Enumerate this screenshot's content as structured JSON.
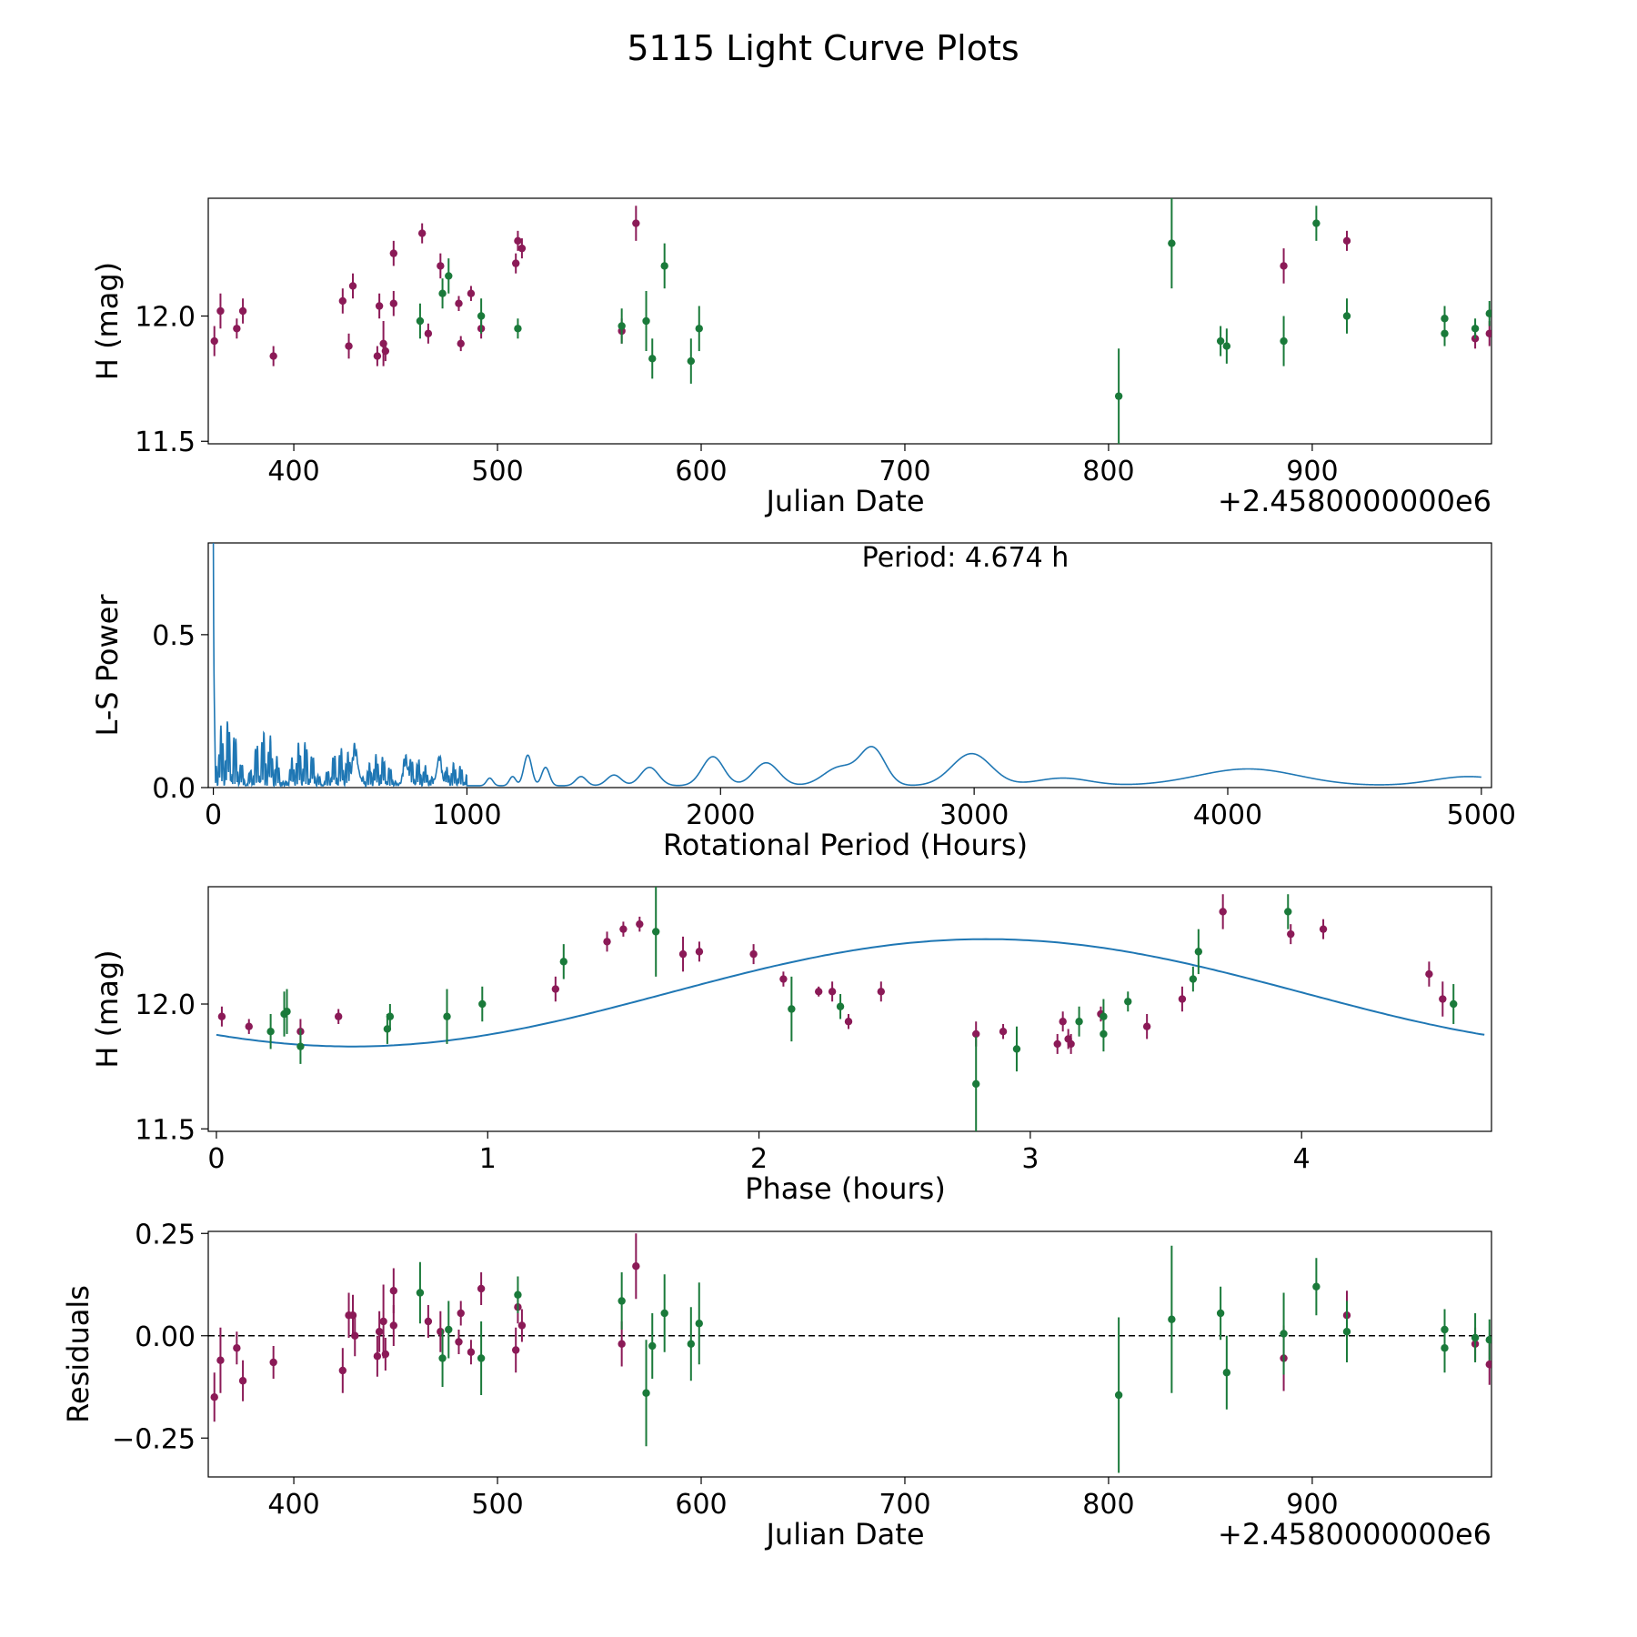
{
  "figure": {
    "title": "5115 Light Curve Plots"
  },
  "colors": {
    "purple": "#8b1a57",
    "green": "#1a7a3a",
    "curve": "#1f77b4"
  },
  "chart_data": [
    {
      "type": "scatter",
      "name": "lightcurve",
      "xlabel": "Julian Date",
      "ylabel": "H (mag)",
      "x_offset_label": "+2.4580000000e6",
      "xlim": [
        358,
        988
      ],
      "ylim": [
        11.49,
        12.47
      ],
      "xticks": [
        400,
        500,
        600,
        700,
        800,
        900
      ],
      "xtick_labels": [
        "400",
        "500",
        "600",
        "700",
        "800",
        "900"
      ],
      "yticks": [
        11.5,
        12.0
      ],
      "ytick_labels": [
        "11.5",
        "12.0"
      ],
      "series": [
        {
          "name": "purple",
          "color": "purple",
          "points": [
            [
              361,
              11.9,
              0.06
            ],
            [
              364,
              12.02,
              0.07
            ],
            [
              372,
              11.95,
              0.04
            ],
            [
              375,
              12.02,
              0.05
            ],
            [
              390,
              11.84,
              0.04
            ],
            [
              424,
              12.06,
              0.05
            ],
            [
              427,
              11.88,
              0.05
            ],
            [
              429,
              12.12,
              0.05
            ],
            [
              441,
              11.84,
              0.04
            ],
            [
              442,
              12.04,
              0.05
            ],
            [
              444,
              11.89,
              0.09
            ],
            [
              445,
              11.86,
              0.04
            ],
            [
              449,
              12.25,
              0.05
            ],
            [
              449,
              12.05,
              0.05
            ],
            [
              463,
              12.33,
              0.04
            ],
            [
              466,
              11.93,
              0.04
            ],
            [
              472,
              12.2,
              0.05
            ],
            [
              481,
              12.05,
              0.03
            ],
            [
              482,
              11.89,
              0.03
            ],
            [
              487,
              12.09,
              0.03
            ],
            [
              492,
              11.95,
              0.04
            ],
            [
              509,
              12.21,
              0.04
            ],
            [
              510,
              12.3,
              0.04
            ],
            [
              512,
              12.27,
              0.04
            ],
            [
              561,
              11.94,
              0.05
            ],
            [
              568,
              12.37,
              0.07
            ],
            [
              917,
              12.3,
              0.04
            ],
            [
              886,
              12.2,
              0.07
            ],
            [
              980,
              11.91,
              0.04
            ],
            [
              987,
              11.93,
              0.05
            ]
          ]
        },
        {
          "name": "green",
          "color": "green",
          "points": [
            [
              462,
              11.98,
              0.07
            ],
            [
              473,
              12.09,
              0.06
            ],
            [
              476,
              12.16,
              0.07
            ],
            [
              492,
              12.0,
              0.07
            ],
            [
              510,
              11.95,
              0.04
            ],
            [
              561,
              11.96,
              0.07
            ],
            [
              573,
              11.98,
              0.12
            ],
            [
              576,
              11.83,
              0.08
            ],
            [
              582,
              12.2,
              0.09
            ],
            [
              595,
              11.82,
              0.09
            ],
            [
              599,
              11.95,
              0.09
            ],
            [
              805,
              11.68,
              0.19
            ],
            [
              831,
              12.29,
              0.18
            ],
            [
              855,
              11.9,
              0.06
            ],
            [
              858,
              11.88,
              0.07
            ],
            [
              886,
              11.9,
              0.1
            ],
            [
              902,
              12.37,
              0.07
            ],
            [
              917,
              12.0,
              0.07
            ],
            [
              965,
              11.99,
              0.05
            ],
            [
              965,
              11.93,
              0.05
            ],
            [
              980,
              11.95,
              0.04
            ],
            [
              987,
              12.01,
              0.05
            ]
          ]
        }
      ]
    },
    {
      "type": "line",
      "name": "periodogram",
      "xlabel": "Rotational Period (Hours)",
      "ylabel": "L-S Power",
      "xlim": [
        -20,
        5040
      ],
      "ylim": [
        0,
        0.8
      ],
      "xticks": [
        0,
        1000,
        2000,
        3000,
        4000,
        5000
      ],
      "xtick_labels": [
        "0",
        "1000",
        "2000",
        "3000",
        "4000",
        "5000"
      ],
      "yticks": [
        0.0,
        0.5
      ],
      "ytick_labels": [
        "0.0",
        "0.5"
      ],
      "annotation": "Period: 4.674 h",
      "peaks": [
        [
          1090,
          0.025,
          18
        ],
        [
          1180,
          0.03,
          18
        ],
        [
          1240,
          0.1,
          22
        ],
        [
          1310,
          0.06,
          22
        ],
        [
          1450,
          0.03,
          30
        ],
        [
          1580,
          0.035,
          40
        ],
        [
          1720,
          0.06,
          50
        ],
        [
          1970,
          0.095,
          60
        ],
        [
          2180,
          0.075,
          70
        ],
        [
          2470,
          0.06,
          90
        ],
        [
          2600,
          0.12,
          70
        ],
        [
          2990,
          0.105,
          110
        ],
        [
          3350,
          0.025,
          150
        ],
        [
          4080,
          0.055,
          280
        ],
        [
          4950,
          0.03,
          200
        ]
      ],
      "low_region_max_period": 1000
    },
    {
      "type": "scatter",
      "name": "phased",
      "xlabel": "Phase (hours)",
      "ylabel": "H (mag)",
      "xlim": [
        -0.03,
        4.7
      ],
      "ylim": [
        11.49,
        12.47
      ],
      "xticks": [
        0,
        1,
        2,
        3,
        4
      ],
      "xtick_labels": [
        "0",
        "1",
        "2",
        "3",
        "4"
      ],
      "yticks": [
        11.5,
        12.0
      ],
      "ytick_labels": [
        "11.5",
        "12.0"
      ],
      "fit": {
        "period": 4.674,
        "mean": 12.045,
        "amplitude": 0.215,
        "min_phase": 0.5
      },
      "series": [
        {
          "name": "purple",
          "color": "purple",
          "points": [
            [
              0.02,
              11.95,
              0.04
            ],
            [
              0.12,
              11.91,
              0.03
            ],
            [
              0.31,
              11.89,
              0.05
            ],
            [
              0.45,
              11.95,
              0.03
            ],
            [
              1.25,
              12.06,
              0.05
            ],
            [
              1.44,
              12.25,
              0.04
            ],
            [
              1.5,
              12.3,
              0.03
            ],
            [
              1.56,
              12.32,
              0.03
            ],
            [
              1.72,
              12.2,
              0.07
            ],
            [
              1.78,
              12.21,
              0.04
            ],
            [
              1.98,
              12.2,
              0.04
            ],
            [
              2.09,
              12.1,
              0.03
            ],
            [
              2.22,
              12.05,
              0.02
            ],
            [
              2.27,
              12.05,
              0.04
            ],
            [
              2.33,
              11.93,
              0.03
            ],
            [
              2.45,
              12.05,
              0.04
            ],
            [
              2.8,
              11.88,
              0.05
            ],
            [
              2.9,
              11.89,
              0.03
            ],
            [
              3.1,
              11.84,
              0.04
            ],
            [
              3.12,
              11.93,
              0.04
            ],
            [
              3.14,
              11.86,
              0.04
            ],
            [
              3.15,
              11.84,
              0.04
            ],
            [
              3.26,
              11.96,
              0.03
            ],
            [
              3.43,
              11.91,
              0.05
            ],
            [
              3.56,
              12.02,
              0.05
            ],
            [
              3.71,
              12.37,
              0.07
            ],
            [
              3.96,
              12.28,
              0.04
            ],
            [
              4.08,
              12.3,
              0.04
            ],
            [
              4.47,
              12.12,
              0.05
            ],
            [
              4.52,
              12.02,
              0.07
            ]
          ]
        },
        {
          "name": "green",
          "color": "green",
          "points": [
            [
              0.2,
              11.89,
              0.07
            ],
            [
              0.25,
              11.96,
              0.09
            ],
            [
              0.26,
              11.97,
              0.09
            ],
            [
              0.31,
              11.83,
              0.07
            ],
            [
              0.63,
              11.9,
              0.06
            ],
            [
              0.64,
              11.95,
              0.05
            ],
            [
              0.85,
              11.95,
              0.11
            ],
            [
              0.98,
              12.0,
              0.07
            ],
            [
              1.28,
              12.17,
              0.07
            ],
            [
              1.62,
              12.29,
              0.18
            ],
            [
              2.12,
              11.98,
              0.13
            ],
            [
              2.3,
              11.99,
              0.05
            ],
            [
              2.8,
              11.68,
              0.19
            ],
            [
              2.95,
              11.82,
              0.09
            ],
            [
              3.18,
              11.93,
              0.06
            ],
            [
              3.27,
              11.88,
              0.07
            ],
            [
              3.27,
              11.95,
              0.07
            ],
            [
              3.36,
              12.01,
              0.04
            ],
            [
              3.6,
              12.1,
              0.05
            ],
            [
              3.62,
              12.21,
              0.09
            ],
            [
              3.95,
              12.37,
              0.07
            ],
            [
              4.56,
              12.0,
              0.08
            ]
          ]
        }
      ]
    },
    {
      "type": "scatter",
      "name": "residuals",
      "xlabel": "Julian Date",
      "ylabel": "Residuals",
      "x_offset_label": "+2.4580000000e6",
      "xlim": [
        358,
        988
      ],
      "ylim": [
        -0.345,
        0.255
      ],
      "xticks": [
        400,
        500,
        600,
        700,
        800,
        900
      ],
      "xtick_labels": [
        "400",
        "500",
        "600",
        "700",
        "800",
        "900"
      ],
      "yticks": [
        0.25,
        0.0,
        -0.25
      ],
      "ytick_labels": [
        "0.25",
        "0.00",
        "−0.25"
      ],
      "zero_line": true,
      "series": [
        {
          "name": "purple",
          "color": "purple",
          "points": [
            [
              361,
              -0.15,
              0.06
            ],
            [
              364,
              -0.06,
              0.08
            ],
            [
              372,
              -0.03,
              0.04
            ],
            [
              375,
              -0.11,
              0.05
            ],
            [
              390,
              -0.065,
              0.04
            ],
            [
              424,
              -0.085,
              0.055
            ],
            [
              427,
              0.05,
              0.055
            ],
            [
              429,
              0.05,
              0.05
            ],
            [
              430,
              0.0,
              0.05
            ],
            [
              441,
              -0.05,
              0.05
            ],
            [
              442,
              0.01,
              0.05
            ],
            [
              444,
              0.035,
              0.09
            ],
            [
              445,
              -0.045,
              0.04
            ],
            [
              449,
              0.11,
              0.055
            ],
            [
              449,
              0.025,
              0.05
            ],
            [
              466,
              0.035,
              0.04
            ],
            [
              472,
              0.01,
              0.05
            ],
            [
              481,
              -0.015,
              0.03
            ],
            [
              482,
              0.055,
              0.03
            ],
            [
              487,
              -0.04,
              0.03
            ],
            [
              492,
              0.115,
              0.04
            ],
            [
              509,
              -0.035,
              0.055
            ],
            [
              510,
              0.07,
              0.04
            ],
            [
              512,
              0.025,
              0.04
            ],
            [
              561,
              -0.02,
              0.055
            ],
            [
              568,
              0.17,
              0.08
            ],
            [
              886,
              -0.055,
              0.08
            ],
            [
              917,
              0.05,
              0.06
            ],
            [
              980,
              -0.02,
              0.04
            ],
            [
              987,
              -0.07,
              0.05
            ]
          ]
        },
        {
          "name": "green",
          "color": "green",
          "points": [
            [
              462,
              0.105,
              0.075
            ],
            [
              473,
              -0.055,
              0.07
            ],
            [
              476,
              0.015,
              0.07
            ],
            [
              492,
              -0.055,
              0.09
            ],
            [
              510,
              0.1,
              0.045
            ],
            [
              561,
              0.085,
              0.07
            ],
            [
              573,
              -0.14,
              0.13
            ],
            [
              576,
              -0.025,
              0.08
            ],
            [
              582,
              0.055,
              0.095
            ],
            [
              595,
              -0.02,
              0.09
            ],
            [
              599,
              0.03,
              0.1
            ],
            [
              805,
              -0.145,
              0.19
            ],
            [
              831,
              0.04,
              0.18
            ],
            [
              855,
              0.055,
              0.065
            ],
            [
              858,
              -0.09,
              0.09
            ],
            [
              886,
              0.005,
              0.1
            ],
            [
              902,
              0.12,
              0.07
            ],
            [
              917,
              0.01,
              0.075
            ],
            [
              965,
              0.015,
              0.05
            ],
            [
              965,
              -0.03,
              0.06
            ],
            [
              980,
              -0.005,
              0.06
            ],
            [
              987,
              -0.01,
              0.05
            ]
          ]
        }
      ]
    }
  ]
}
